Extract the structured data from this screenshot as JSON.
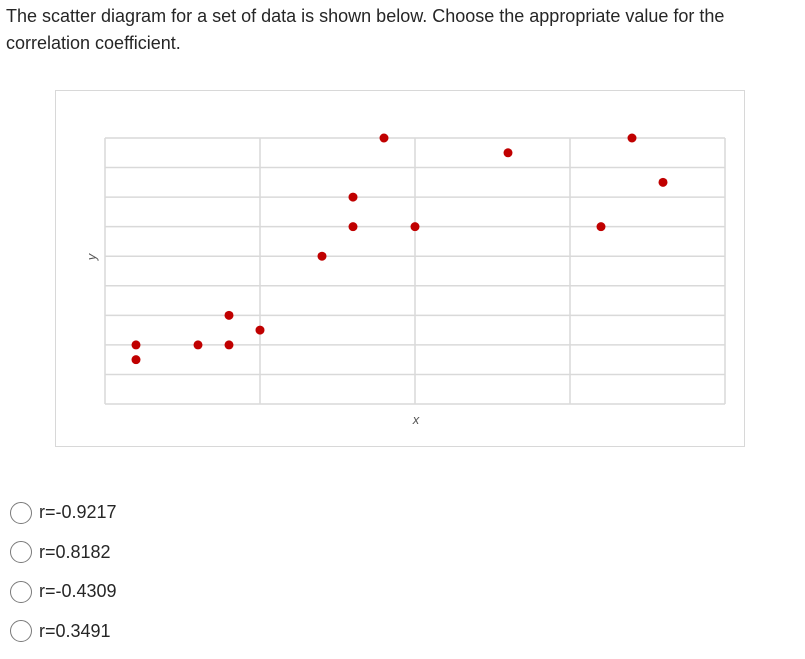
{
  "question": {
    "text": "The scatter diagram for a set of data is shown below.  Choose the appropriate value for the correlation coefficient."
  },
  "colors": {
    "point": "#c00000",
    "grid": "#d9d9d9",
    "frame": "#d8d8d8",
    "text": "#262626"
  },
  "chart_data": {
    "type": "scatter",
    "title": "",
    "xlabel": "x",
    "ylabel": "y",
    "xlim": [
      0,
      20
    ],
    "ylim": [
      0,
      9
    ],
    "grid": true,
    "x_grid_step": 5,
    "y_grid_step": 1,
    "series": [
      {
        "points": [
          [
            1,
            1.5
          ],
          [
            1,
            2
          ],
          [
            3,
            2
          ],
          [
            4,
            2
          ],
          [
            4,
            3
          ],
          [
            5,
            2.5
          ],
          [
            7,
            5
          ],
          [
            8,
            6
          ],
          [
            8,
            7
          ],
          [
            9,
            9
          ],
          [
            10,
            6
          ],
          [
            13,
            8.5
          ],
          [
            16,
            6
          ],
          [
            17,
            9
          ],
          [
            18,
            7.5
          ]
        ]
      }
    ]
  },
  "options": [
    {
      "label": "r=-0.9217"
    },
    {
      "label": "r=0.8182"
    },
    {
      "label": "r=-0.4309"
    },
    {
      "label": "r=0.3491"
    }
  ]
}
